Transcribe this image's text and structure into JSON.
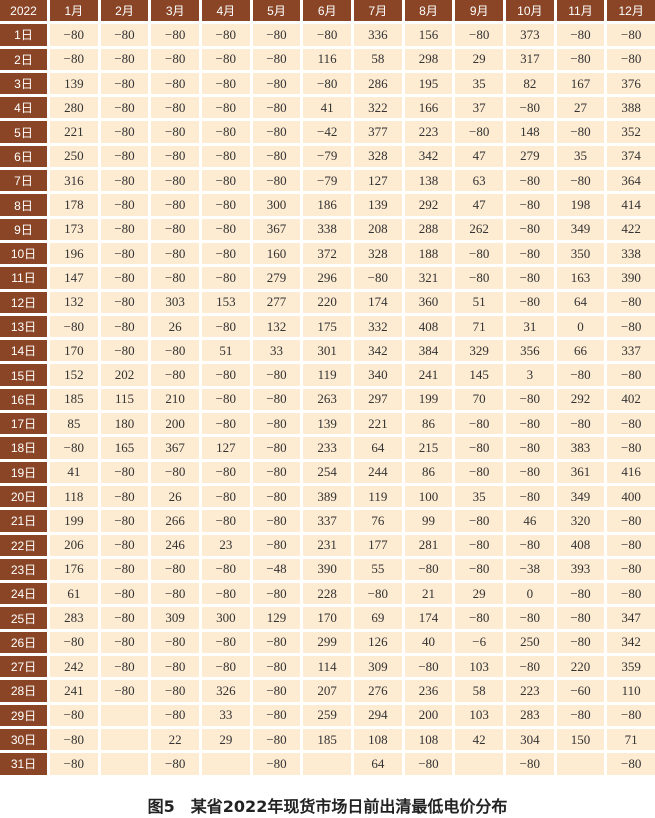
{
  "caption": "图5　某省2022年现货市场日前出清最低电价分布",
  "chart_data": {
    "type": "table",
    "title": "图5　某省2022年现货市场日前出清最低电价分布",
    "corner_label": "2022",
    "columns": [
      "1月",
      "2月",
      "3月",
      "4月",
      "5月",
      "6月",
      "7月",
      "8月",
      "9月",
      "10月",
      "11月",
      "12月"
    ],
    "row_labels": [
      "1日",
      "2日",
      "3日",
      "4日",
      "5日",
      "6日",
      "7日",
      "8日",
      "9日",
      "10日",
      "11日",
      "12日",
      "13日",
      "14日",
      "15日",
      "16日",
      "17日",
      "18日",
      "19日",
      "20日",
      "21日",
      "22日",
      "23日",
      "24日",
      "25日",
      "26日",
      "27日",
      "28日",
      "29日",
      "30日",
      "31日"
    ],
    "rows": [
      [
        -80,
        -80,
        -80,
        -80,
        -80,
        -80,
        336,
        156,
        -80,
        373,
        -80,
        -80
      ],
      [
        -80,
        -80,
        -80,
        -80,
        -80,
        116,
        58,
        298,
        29,
        317,
        -80,
        -80
      ],
      [
        139,
        -80,
        -80,
        -80,
        -80,
        -80,
        286,
        195,
        35,
        82,
        167,
        376
      ],
      [
        280,
        -80,
        -80,
        -80,
        -80,
        41,
        322,
        166,
        37,
        -80,
        27,
        388
      ],
      [
        221,
        -80,
        -80,
        -80,
        -80,
        -42,
        377,
        223,
        -80,
        148,
        -80,
        352
      ],
      [
        250,
        -80,
        -80,
        -80,
        -80,
        -79,
        328,
        342,
        47,
        279,
        35,
        374
      ],
      [
        316,
        -80,
        -80,
        -80,
        -80,
        -79,
        127,
        138,
        63,
        -80,
        -80,
        364
      ],
      [
        178,
        -80,
        -80,
        -80,
        300,
        186,
        139,
        292,
        47,
        -80,
        198,
        414
      ],
      [
        173,
        -80,
        -80,
        -80,
        367,
        338,
        208,
        288,
        262,
        -80,
        349,
        422
      ],
      [
        196,
        -80,
        -80,
        -80,
        160,
        372,
        328,
        188,
        -80,
        -80,
        350,
        338
      ],
      [
        147,
        -80,
        -80,
        -80,
        279,
        296,
        -80,
        321,
        -80,
        -80,
        163,
        390
      ],
      [
        132,
        -80,
        303,
        153,
        277,
        220,
        174,
        360,
        51,
        -80,
        64,
        -80
      ],
      [
        -80,
        -80,
        26,
        -80,
        132,
        175,
        332,
        408,
        71,
        31,
        0,
        -80
      ],
      [
        170,
        -80,
        -80,
        51,
        33,
        301,
        342,
        384,
        329,
        356,
        66,
        337
      ],
      [
        152,
        202,
        -80,
        -80,
        -80,
        119,
        340,
        241,
        145,
        3,
        -80,
        -80
      ],
      [
        185,
        115,
        210,
        -80,
        -80,
        263,
        297,
        199,
        70,
        -80,
        292,
        402
      ],
      [
        85,
        180,
        200,
        -80,
        -80,
        139,
        221,
        86,
        -80,
        -80,
        -80,
        -80
      ],
      [
        -80,
        165,
        367,
        127,
        -80,
        233,
        64,
        215,
        -80,
        -80,
        383,
        -80
      ],
      [
        41,
        -80,
        -80,
        -80,
        -80,
        254,
        244,
        86,
        -80,
        -80,
        361,
        416
      ],
      [
        118,
        -80,
        26,
        -80,
        -80,
        389,
        119,
        100,
        35,
        -80,
        349,
        400
      ],
      [
        199,
        -80,
        266,
        -80,
        -80,
        337,
        76,
        99,
        -80,
        46,
        320,
        -80
      ],
      [
        206,
        -80,
        246,
        23,
        -80,
        231,
        177,
        281,
        -80,
        -80,
        408,
        -80
      ],
      [
        176,
        -80,
        -80,
        -80,
        -48,
        390,
        55,
        -80,
        -80,
        -38,
        393,
        -80
      ],
      [
        61,
        -80,
        -80,
        -80,
        -80,
        228,
        -80,
        21,
        29,
        0,
        -80,
        -80
      ],
      [
        283,
        -80,
        309,
        300,
        129,
        170,
        69,
        174,
        -80,
        -80,
        -80,
        347
      ],
      [
        -80,
        -80,
        -80,
        -80,
        -80,
        299,
        126,
        40,
        -6,
        250,
        -80,
        342
      ],
      [
        242,
        -80,
        -80,
        -80,
        -80,
        114,
        309,
        -80,
        103,
        -80,
        220,
        359
      ],
      [
        241,
        -80,
        -80,
        326,
        -80,
        207,
        276,
        236,
        58,
        223,
        -60,
        110
      ],
      [
        -80,
        null,
        -80,
        33,
        -80,
        259,
        294,
        200,
        103,
        283,
        -80,
        -80
      ],
      [
        -80,
        null,
        22,
        29,
        -80,
        185,
        108,
        108,
        42,
        304,
        150,
        71
      ],
      [
        -80,
        null,
        -80,
        null,
        -80,
        null,
        64,
        -80,
        null,
        -80,
        null,
        -80
      ]
    ],
    "colors": {
      "header_bg": "#8a4526",
      "cell_bg": "#fdebd2"
    }
  }
}
